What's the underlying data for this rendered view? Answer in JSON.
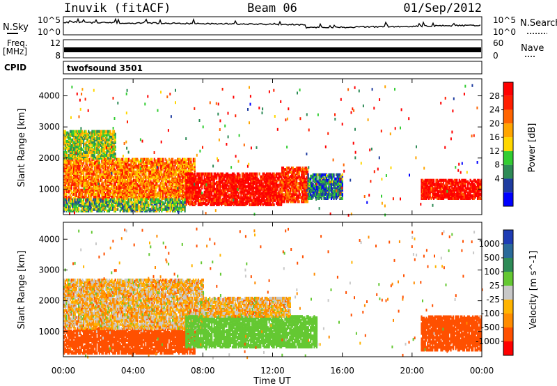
{
  "header": {
    "station": "Inuvik (fitACF)",
    "beam": "Beam 06",
    "date": "01/Sep/2012"
  },
  "top_panels": {
    "nsky_label": "N.Sky",
    "nsky_ticks": [
      "10^5",
      "10^0"
    ],
    "nsearch_label": "N.Search",
    "nsearch_ticks": [
      "10^5",
      "10^0"
    ],
    "freq_label_1": "Freq.",
    "freq_label_2": "[MHz]",
    "freq_ticks": [
      "12",
      "8"
    ],
    "nave_label": "Nave",
    "nave_ticks": [
      "60",
      "0"
    ],
    "cpid_label": "CPID",
    "cpid_value": "twofsound 3501"
  },
  "colors": {
    "power_scale": [
      "#0000ff",
      "#1e3ca0",
      "#2e8b57",
      "#32cd32",
      "#ffd700",
      "#ffa500",
      "#ff6400",
      "#ff1e00",
      "#ff0000"
    ],
    "velocity_scale": [
      "#ff0000",
      "#ff5000",
      "#ff8c00",
      "#ffb400",
      "#c8c8c8",
      "#64c832",
      "#2e8b57",
      "#2a6a9a",
      "#1e3cb4"
    ]
  },
  "chart_data": [
    {
      "type": "heatmap",
      "name": "power",
      "ylabel": "Slant Range [km]",
      "yticks": [
        1000,
        2000,
        3000,
        4000
      ],
      "ylim": [
        180,
        4550
      ],
      "xlim": [
        0,
        24
      ],
      "xticks": [
        "00:00",
        "04:00",
        "08:00",
        "12:00",
        "16:00",
        "20:00",
        "00:00"
      ],
      "colorbar_label": "Power [dB]",
      "colorbar_ticks": [
        "28",
        "24",
        "20",
        "16",
        "12",
        "8",
        "4"
      ],
      "colorbar_range": [
        0,
        32
      ],
      "patches": [
        {
          "t0": 0.0,
          "t1": 7.5,
          "r0": 700,
          "r1": 2000,
          "v": 22
        },
        {
          "t0": 7.0,
          "t1": 12.5,
          "r0": 500,
          "r1": 1500,
          "v": 30
        },
        {
          "t0": 12.5,
          "t1": 14.0,
          "r0": 600,
          "r1": 1700,
          "v": 26
        },
        {
          "t0": 14.0,
          "t1": 16.0,
          "r0": 700,
          "r1": 1500,
          "v": 8
        },
        {
          "t0": 20.5,
          "t1": 24.0,
          "r0": 700,
          "r1": 1300,
          "v": 30
        },
        {
          "t0": 0.0,
          "t1": 3.0,
          "r0": 2000,
          "r1": 2900,
          "v": 14
        },
        {
          "t0": 0.0,
          "t1": 7.0,
          "r0": 300,
          "r1": 700,
          "v": 12
        }
      ]
    },
    {
      "type": "heatmap",
      "name": "velocity",
      "ylabel": "Slant Range [km]",
      "yticks": [
        1000,
        2000,
        3000,
        4000
      ],
      "ylim": [
        180,
        4550
      ],
      "xlim": [
        0,
        24
      ],
      "xticks": [
        "00:00",
        "04:00",
        "08:00",
        "12:00",
        "16:00",
        "20:00",
        "00:00"
      ],
      "xlabel": "Time UT",
      "colorbar_label": "Velocity [m s^-1]",
      "colorbar_ticks": [
        "1000",
        "500",
        "100",
        "25",
        "-25",
        "-100",
        "-500",
        "-1000"
      ],
      "patches": [
        {
          "t0": 0.0,
          "t1": 7.5,
          "r0": 300,
          "r1": 1100,
          "v": -300
        },
        {
          "t0": 0.0,
          "t1": 8.0,
          "r0": 1100,
          "r1": 2700,
          "v": 0
        },
        {
          "t0": 7.0,
          "t1": 14.5,
          "r0": 500,
          "r1": 1500,
          "v": 300
        },
        {
          "t0": 8.0,
          "t1": 13.0,
          "r0": 1500,
          "r1": 2100,
          "v": 0
        },
        {
          "t0": 20.5,
          "t1": 24.0,
          "r0": 400,
          "r1": 1500,
          "v": -300
        }
      ]
    }
  ]
}
